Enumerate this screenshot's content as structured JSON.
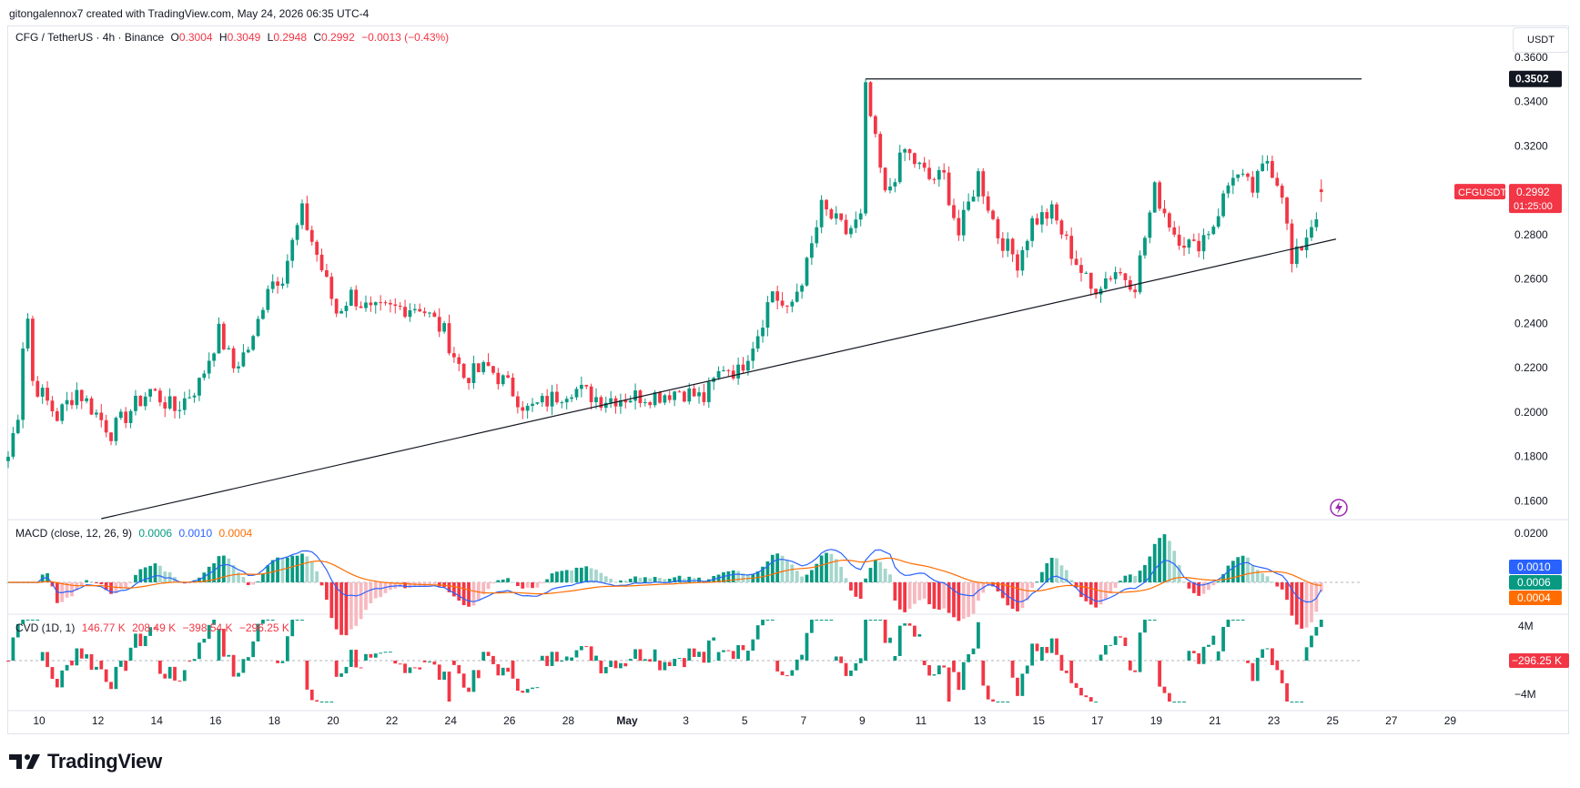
{
  "header": {
    "created_text": "gitongalennox7 created with TradingView.com, May 24, 2026 06:35 UTC-4"
  },
  "symbol_legend": {
    "title": "CFG / TetherUS · 4h · Binance",
    "o_label": "O",
    "o_value": "0.3004",
    "h_label": "H",
    "h_value": "0.3049",
    "l_label": "L",
    "l_value": "0.2948",
    "c_label": "C",
    "c_value": "0.2992",
    "change": "−0.0013 (−0.43%)"
  },
  "unit_button": "USDT",
  "price_axis": {
    "ticks": [
      "0.3600",
      "0.3400",
      "0.3200",
      "0.2800",
      "0.2600",
      "0.2400",
      "0.2200",
      "0.2000",
      "0.1800",
      "0.1600"
    ],
    "resistance_label": "0.3502",
    "symbol_label": "CFGUSDT",
    "last_price_label": "0.2992",
    "countdown_label": "01:25:00"
  },
  "macd_legend": {
    "title": "MACD (close, 12, 26, 9)",
    "hist": "0.0006",
    "macd": "0.0010",
    "signal": "0.0004"
  },
  "macd_axis": {
    "top_tick": "0.0200",
    "macd_label": "0.0010",
    "hist_label": "0.0006",
    "signal_label": "0.0004"
  },
  "cvd_legend": {
    "title": "CVD (1D, 1)",
    "v1": "146.77 K",
    "v2": "208.49 K",
    "v3": "−398.54 K",
    "v4": "−296.25 K"
  },
  "cvd_axis": {
    "top_tick": "4M",
    "bottom_tick": "−4M",
    "value_label": "−296.25 K"
  },
  "time_axis": [
    "10",
    "12",
    "14",
    "16",
    "18",
    "20",
    "22",
    "24",
    "26",
    "28",
    "May",
    "3",
    "5",
    "7",
    "9",
    "11",
    "13",
    "15",
    "17",
    "19",
    "21",
    "23",
    "25",
    "27",
    "29"
  ],
  "footer": {
    "brand": "TradingView"
  },
  "colors": {
    "up": "#089981",
    "down": "#f23645",
    "macd": "#2962ff",
    "signal": "#ff6d00",
    "grid": "#f0f3fa"
  },
  "chart_data": {
    "type": "candlestick",
    "symbol": "CFG / TetherUS",
    "interval": "4h",
    "exchange": "Binance",
    "ylim": [
      0.152,
      0.371
    ],
    "x_start": "Apr 9 20:00",
    "anchors": [
      [
        "Apr 9 20:00",
        0.18
      ],
      [
        "Apr 10 06:00",
        0.205
      ],
      [
        "Apr 10 10:00",
        0.257
      ],
      [
        "Apr 10 16:00",
        0.214
      ],
      [
        "Apr 11 12:00",
        0.198
      ],
      [
        "Apr 12 04:00",
        0.21
      ],
      [
        "Apr 12 16:00",
        0.202
      ],
      [
        "Apr 13 08:00",
        0.191
      ],
      [
        "Apr 14 00:00",
        0.201
      ],
      [
        "Apr 14 16:00",
        0.21
      ],
      [
        "Apr 15 12:00",
        0.201
      ],
      [
        "Apr 16 08:00",
        0.213
      ],
      [
        "Apr 17 00:00",
        0.236
      ],
      [
        "Apr 17 12:00",
        0.22
      ],
      [
        "Apr 18 04:00",
        0.232
      ],
      [
        "Apr 18 16:00",
        0.258
      ],
      [
        "Apr 19 04:00",
        0.262
      ],
      [
        "Apr 19 20:00",
        0.29
      ],
      [
        "Apr 20 08:00",
        0.271
      ],
      [
        "Apr 21 00:00",
        0.245
      ],
      [
        "Apr 21 12:00",
        0.253
      ],
      [
        "Apr 22 04:00",
        0.245
      ],
      [
        "Apr 23 04:00",
        0.247
      ],
      [
        "Apr 23 20:00",
        0.248
      ],
      [
        "Apr 24 16:00",
        0.236
      ],
      [
        "Apr 25 08:00",
        0.216
      ],
      [
        "Apr 26 04:00",
        0.22
      ],
      [
        "Apr 26 20:00",
        0.212
      ],
      [
        "Apr 27 12:00",
        0.201
      ],
      [
        "Apr 28 04:00",
        0.205
      ],
      [
        "Apr 29 00:00",
        0.211
      ],
      [
        "Apr 30 00:00",
        0.206
      ],
      [
        "May 1 00:00",
        0.207
      ],
      [
        "May 2 00:00",
        0.208
      ],
      [
        "May 2 16:00",
        0.21
      ],
      [
        "May 3 12:00",
        0.206
      ],
      [
        "May 4 04:00",
        0.221
      ],
      [
        "May 4 16:00",
        0.218
      ],
      [
        "May 5 08:00",
        0.236
      ],
      [
        "May 5 20:00",
        0.255
      ],
      [
        "May 6 08:00",
        0.244
      ],
      [
        "May 7 00:00",
        0.266
      ],
      [
        "May 7 12:00",
        0.292
      ],
      [
        "May 8 08:00",
        0.281
      ],
      [
        "May 8 20:00",
        0.287
      ],
      [
        "May 9 00:00",
        0.345
      ],
      [
        "May 9 16:00",
        0.297
      ],
      [
        "May 10 08:00",
        0.318
      ],
      [
        "May 11 04:00",
        0.305
      ],
      [
        "May 11 16:00",
        0.306
      ],
      [
        "May 12 04:00",
        0.28
      ],
      [
        "May 12 20:00",
        0.307
      ],
      [
        "May 13 12:00",
        0.28
      ],
      [
        "May 14 04:00",
        0.268
      ],
      [
        "May 14 16:00",
        0.286
      ],
      [
        "May 15 08:00",
        0.29
      ],
      [
        "May 16 00:00",
        0.272
      ],
      [
        "May 16 16:00",
        0.255
      ],
      [
        "May 17 12:00",
        0.264
      ],
      [
        "May 18 04:00",
        0.258
      ],
      [
        "May 18 20:00",
        0.3
      ],
      [
        "May 19 12:00",
        0.281
      ],
      [
        "May 20 04:00",
        0.274
      ],
      [
        "May 20 20:00",
        0.285
      ],
      [
        "May 21 12:00",
        0.308
      ],
      [
        "May 22 04:00",
        0.3
      ],
      [
        "May 22 16:00",
        0.314
      ],
      [
        "May 23 04:00",
        0.3
      ],
      [
        "May 23 12:00",
        0.266
      ],
      [
        "May 23 20:00",
        0.275
      ],
      [
        "May 24 08:00",
        0.29
      ],
      [
        "May 24 12:00",
        0.302
      ]
    ],
    "last": {
      "open": 0.3004,
      "high": 0.3049,
      "low": 0.2948,
      "close": 0.2992,
      "change": -0.0013,
      "change_pct": -0.43
    },
    "resistance_level": 0.3502,
    "trendline": [
      [
        "Apr 13 00:00",
        0.152
      ],
      [
        "May 25 00:00",
        0.278
      ]
    ],
    "indicators": {
      "macd": {
        "params": "close, 12, 26, 9",
        "hist": 0.0006,
        "macd": 0.001,
        "signal": 0.0004,
        "axis_top": 0.02
      },
      "cvd": {
        "params": "1D, 1",
        "values": [
          "146.77 K",
          "208.49 K",
          "−398.54 K",
          "−296.25 K"
        ],
        "axis": [
          "4M",
          "−4M"
        ]
      }
    },
    "x_ticks": [
      "10",
      "12",
      "14",
      "16",
      "18",
      "20",
      "22",
      "24",
      "26",
      "28",
      "May",
      "3",
      "5",
      "7",
      "9",
      "11",
      "13",
      "15",
      "17",
      "19",
      "21",
      "23",
      "25",
      "27",
      "29"
    ],
    "grid": false
  }
}
